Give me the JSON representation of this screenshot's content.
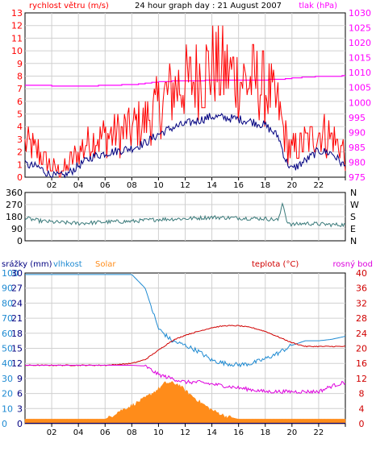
{
  "colors": {
    "wind_gust": "#ff0000",
    "wind_avg": "#000080",
    "pressure": "#ff00ff",
    "direction": "#3a7a7a",
    "humidity": "#1e8ad2",
    "solar": "#ff8c1a",
    "temperature": "#d00000",
    "dewpoint": "#dd00dd",
    "rain": "#000080"
  },
  "chart_data": [
    {
      "type": "line",
      "title": "24 hour graph day : 21 August 2007",
      "ylabel_left": "rychlost větru (m/s)",
      "ylabel_right": "tlak (hPa)",
      "ylim_left": [
        0,
        13
      ],
      "ylim_right": [
        975,
        1030
      ],
      "yticks_left": [
        "0",
        "1",
        "2",
        "3",
        "4",
        "5",
        "6",
        "7",
        "8",
        "9",
        "10",
        "11",
        "12",
        "13"
      ],
      "yticks_right": [
        "975",
        "980",
        "985",
        "990",
        "995",
        "1000",
        "1005",
        "1010",
        "1015",
        "1020",
        "1025",
        "1030"
      ],
      "xlim": [
        0,
        24
      ],
      "xticks": [
        "02",
        "04",
        "06",
        "08",
        "10",
        "12",
        "14",
        "16",
        "18",
        "20",
        "22",
        ""
      ],
      "series": [
        {
          "id": "gust",
          "x": [
            0,
            1,
            2,
            3,
            4,
            5,
            6,
            7,
            8,
            9,
            10,
            11,
            12,
            13,
            14,
            15,
            16,
            17,
            18,
            19,
            19.5,
            20,
            21,
            22,
            23,
            24
          ],
          "values": [
            2.5,
            2,
            0.6,
            0.6,
            2,
            3,
            3.2,
            3.5,
            3.8,
            4.5,
            5.5,
            7.0,
            7.4,
            8.0,
            8.8,
            8.4,
            7.8,
            7.6,
            7.0,
            5.5,
            3,
            2,
            2.8,
            3.5,
            3.2,
            1.8
          ]
        },
        {
          "id": "average",
          "x": [
            0,
            1,
            2,
            3,
            4,
            5,
            6,
            7,
            8,
            9,
            10,
            11,
            12,
            13,
            14,
            15,
            16,
            17,
            18,
            19,
            19.5,
            20,
            21,
            22,
            23,
            24
          ],
          "values": [
            1.0,
            0.8,
            0.1,
            0.1,
            0.9,
            1.6,
            1.9,
            2.1,
            2.3,
            2.7,
            3.4,
            3.9,
            4.2,
            4.5,
            4.8,
            4.7,
            4.6,
            4.4,
            4.1,
            3.2,
            1.4,
            0.6,
            1.3,
            2.1,
            1.9,
            0.8
          ]
        },
        {
          "id": "pressure",
          "x": [
            0,
            2,
            4,
            6,
            8,
            9,
            10,
            12,
            14,
            16,
            18,
            19,
            20,
            22,
            24
          ],
          "values": [
            1005.8,
            1005.6,
            1005.4,
            1005.7,
            1006,
            1006.4,
            1007,
            1007.3,
            1007.4,
            1007.5,
            1007.6,
            1007.7,
            1008.2,
            1008.7,
            1008.9
          ]
        }
      ]
    },
    {
      "type": "line",
      "ylabel_right": "",
      "ylim": [
        0,
        360
      ],
      "yticks_left": [
        "0",
        "90",
        "180",
        "270",
        "360"
      ],
      "yticks_right": [
        "N",
        "E",
        "S",
        "W",
        "N"
      ],
      "xlim": [
        0,
        24
      ],
      "series": [
        {
          "id": "direction",
          "x": [
            0,
            1,
            2,
            3,
            4,
            6,
            8,
            10,
            12,
            14,
            16,
            18,
            19,
            19.3,
            19.6,
            20,
            21,
            22,
            23,
            24
          ],
          "values": [
            170,
            150,
            140,
            135,
            130,
            140,
            145,
            160,
            165,
            175,
            170,
            165,
            155,
            285,
            150,
            120,
            130,
            125,
            120,
            120
          ]
        }
      ]
    },
    {
      "type": "area",
      "ylabel_left_1": "srážky (mm)",
      "ylabel_left_2": "vlhkost",
      "ylabel_left_3": "Solar",
      "ylabel_right_1": "teplota (°C)",
      "ylabel_right_2": "rosný bod",
      "ylim_rain": [
        0,
        30
      ],
      "ylim_humidity": [
        0,
        100
      ],
      "ylim_temperature": [
        0,
        40
      ],
      "yticks_humidity": [
        "0",
        "10",
        "20",
        "30",
        "40",
        "50",
        "60",
        "70",
        "80",
        "90",
        "100"
      ],
      "yticks_rain": [
        "0",
        "3",
        "6",
        "9",
        "12",
        "15",
        "18",
        "21",
        "24",
        "27",
        "30"
      ],
      "yticks_temp": [
        "0",
        "4",
        "8",
        "12",
        "16",
        "20",
        "24",
        "28",
        "32",
        "36",
        "40"
      ],
      "xlim": [
        0,
        24
      ],
      "xticks": [
        "02",
        "04",
        "06",
        "08",
        "10",
        "12",
        "14",
        "16",
        "18",
        "20",
        "22",
        ""
      ],
      "series": [
        {
          "id": "temperature",
          "x": [
            0,
            2,
            4,
            6,
            7,
            8,
            9,
            10,
            11,
            12,
            13,
            14,
            15,
            16,
            17,
            18,
            19,
            20,
            21,
            22,
            23,
            24
          ],
          "values": [
            15.5,
            15.5,
            15.5,
            15.5,
            15.7,
            16,
            17,
            19.5,
            22,
            23.5,
            24.5,
            25.5,
            26,
            26,
            25.5,
            24.5,
            23,
            21.5,
            20.5,
            20.5,
            20.5,
            20.5
          ]
        },
        {
          "id": "dewpoint",
          "x": [
            0,
            2,
            4,
            6,
            8,
            9,
            10,
            11,
            12,
            13,
            14,
            15,
            16,
            17,
            18,
            19,
            20,
            21,
            22,
            23,
            24
          ],
          "values": [
            15.5,
            15.5,
            15.5,
            15.5,
            15.5,
            15.3,
            13,
            12,
            11,
            11,
            10.5,
            10,
            9.5,
            9,
            8.5,
            8.5,
            8.5,
            8.5,
            8.5,
            10,
            11
          ]
        },
        {
          "id": "humidity",
          "x": [
            0,
            2,
            4,
            6,
            8,
            9,
            10,
            11,
            12,
            13,
            14,
            15,
            16,
            17,
            18,
            19,
            20,
            21,
            22,
            23,
            24
          ],
          "values": [
            99,
            99,
            99,
            99,
            99,
            90,
            63,
            55,
            52,
            48,
            42,
            40,
            39,
            40,
            43,
            47,
            52,
            55,
            55,
            56,
            58
          ]
        },
        {
          "id": "solar",
          "x": [
            0,
            1,
            2,
            3,
            4,
            5,
            6,
            6.5,
            7,
            8,
            9,
            10,
            10.5,
            11,
            11.5,
            12,
            13,
            14,
            15,
            16,
            17,
            18,
            19,
            20,
            21,
            22,
            23,
            24
          ],
          "values": [
            3,
            3,
            3,
            3,
            3,
            3,
            3,
            5,
            8,
            12,
            17,
            23,
            27,
            27,
            26,
            22,
            15,
            9,
            5,
            3,
            3,
            3,
            3,
            3,
            3,
            3,
            3,
            3
          ]
        },
        {
          "id": "rain",
          "x": [
            0,
            24
          ],
          "values": [
            0,
            0
          ]
        }
      ]
    }
  ]
}
